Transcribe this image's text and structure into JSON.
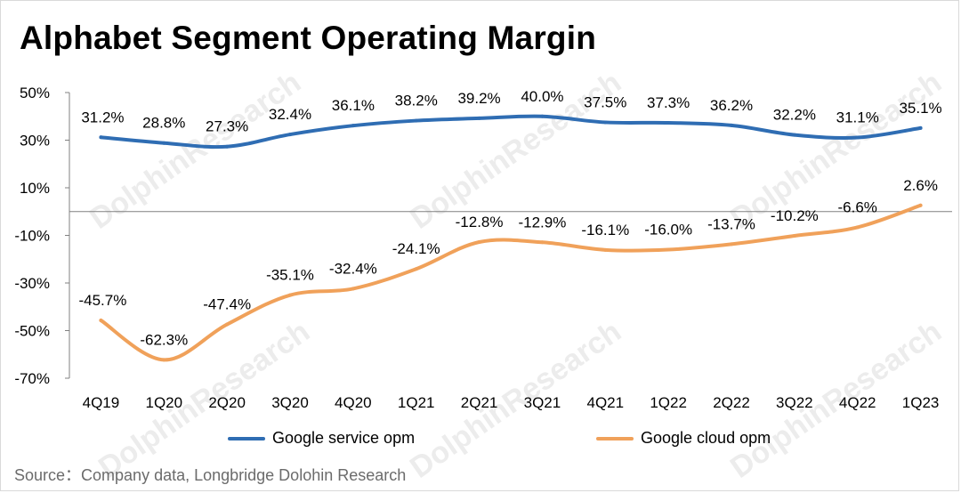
{
  "title": "Alphabet Segment Operating Margin",
  "source": "Source：Company data,  Longbridge Dolohin Research",
  "watermark": "DolphinResearch",
  "colors": {
    "service": "#2f6db3",
    "cloud": "#f0a15a",
    "axis": "#808080",
    "zero_line": "#808080"
  },
  "chart_data": {
    "type": "line",
    "title": "Alphabet Segment Operating Margin",
    "categories": [
      "4Q19",
      "1Q20",
      "2Q20",
      "3Q20",
      "4Q20",
      "1Q21",
      "2Q21",
      "3Q21",
      "4Q21",
      "1Q22",
      "2Q22",
      "3Q22",
      "4Q22",
      "1Q23"
    ],
    "ylim": [
      -70,
      50
    ],
    "yticks": [
      -70,
      -50,
      -30,
      -10,
      10,
      30,
      50
    ],
    "ytick_labels": [
      "-70%",
      "-50%",
      "-30%",
      "-10%",
      "10%",
      "30%",
      "50%"
    ],
    "grid": false,
    "legend_position": "bottom",
    "series": [
      {
        "name": "Google service opm",
        "color": "#2f6db3",
        "values": [
          31.2,
          28.8,
          27.3,
          32.4,
          36.1,
          38.2,
          39.2,
          40.0,
          37.5,
          37.3,
          36.2,
          32.2,
          31.1,
          35.1
        ],
        "labels": [
          "31.2%",
          "28.8%",
          "27.3%",
          "32.4%",
          "36.1%",
          "38.2%",
          "39.2%",
          "40.0%",
          "37.5%",
          "37.3%",
          "36.2%",
          "32.2%",
          "31.1%",
          "35.1%"
        ]
      },
      {
        "name": "Google cloud opm",
        "color": "#f0a15a",
        "values": [
          -45.7,
          -62.3,
          -47.4,
          -35.1,
          -32.4,
          -24.1,
          -12.8,
          -12.9,
          -16.1,
          -16.0,
          -13.7,
          -10.2,
          -6.6,
          2.6
        ],
        "labels": [
          "-45.7%",
          "-62.3%",
          "-47.4%",
          "-35.1%",
          "-32.4%",
          "-24.1%",
          "-12.8%",
          "-12.9%",
          "-16.1%",
          "-16.0%",
          "-13.7%",
          "-10.2%",
          "-6.6%",
          "2.6%"
        ]
      }
    ]
  }
}
